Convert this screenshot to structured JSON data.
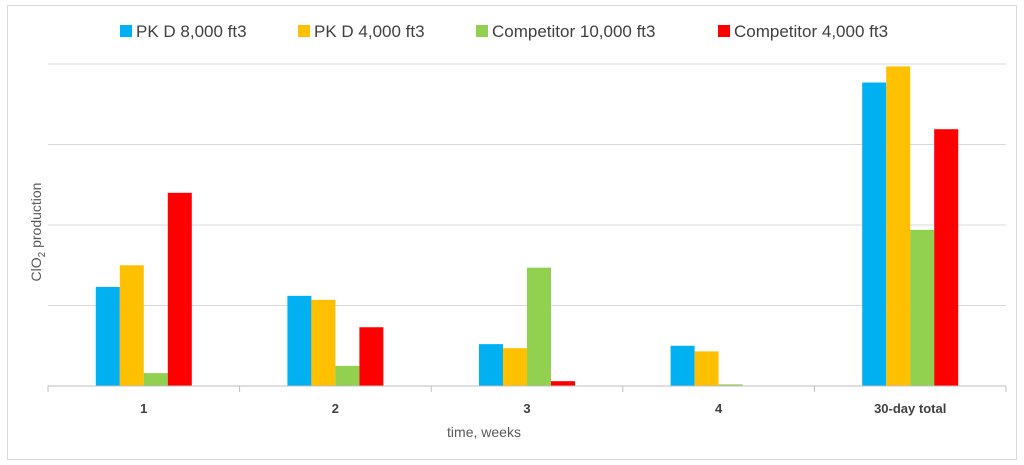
{
  "chart_data": {
    "type": "bar",
    "title": "",
    "xlabel": "time, weeks",
    "ylabel_main": "ClO",
    "ylabel_sub": "2",
    "ylabel_rest": " production",
    "ylim": [
      0,
      4
    ],
    "grid": true,
    "legend_position": "top",
    "categories": [
      "1",
      "2",
      "3",
      "4",
      "30-day total"
    ],
    "series": [
      {
        "name": "PK D 8,000 ft3",
        "color": "#00B0F0",
        "values": [
          1.23,
          1.12,
          0.52,
          0.5,
          3.77
        ]
      },
      {
        "name": "PK D 4,000 ft3",
        "color": "#FFC000",
        "values": [
          1.5,
          1.07,
          0.47,
          0.43,
          3.97
        ]
      },
      {
        "name": "Competitor 10,000 ft3",
        "color": "#92D050",
        "values": [
          0.16,
          0.25,
          1.47,
          0.02,
          1.94
        ]
      },
      {
        "name": "Competitor 4,000 ft3",
        "color": "#FF0000",
        "values": [
          2.4,
          0.73,
          0.06,
          0.0,
          3.19
        ]
      }
    ]
  }
}
